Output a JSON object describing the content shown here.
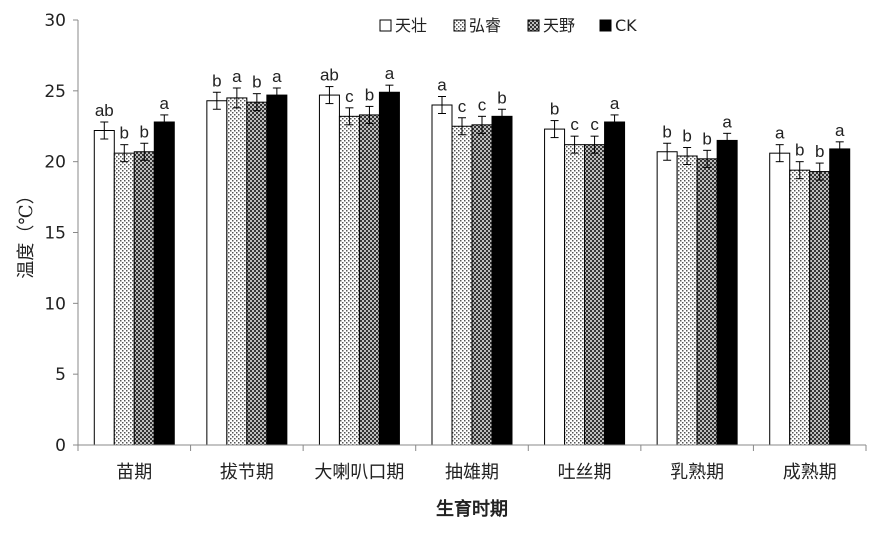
{
  "chart_data": {
    "type": "bar",
    "xlabel": "生育时期",
    "ylabel": "温度（℃）",
    "ylim": [
      0,
      30
    ],
    "yticks": [
      0,
      5,
      10,
      15,
      20,
      25,
      30
    ],
    "categories": [
      "苗期",
      "拔节期",
      "大喇叭口期",
      "抽雄期",
      "吐丝期",
      "乳熟期",
      "成熟期"
    ],
    "legend_position": "top",
    "series": [
      {
        "name": "天壮",
        "pattern": "white",
        "values": [
          22.2,
          24.3,
          24.7,
          24.0,
          22.3,
          20.7,
          20.6
        ],
        "errors": [
          0.6,
          0.6,
          0.6,
          0.6,
          0.6,
          0.6,
          0.6
        ],
        "labels": [
          "ab",
          "b",
          "ab",
          "a",
          "b",
          "b",
          "a"
        ]
      },
      {
        "name": "弘睿",
        "pattern": "dots",
        "values": [
          20.6,
          24.5,
          23.2,
          22.5,
          21.2,
          20.4,
          19.4
        ],
        "errors": [
          0.6,
          0.7,
          0.6,
          0.6,
          0.6,
          0.6,
          0.6
        ],
        "labels": [
          "b",
          "a",
          "c",
          "c",
          "c",
          "b",
          "b"
        ]
      },
      {
        "name": "天野",
        "pattern": "crosshatch",
        "values": [
          20.7,
          24.2,
          23.3,
          22.6,
          21.2,
          20.2,
          19.3
        ],
        "errors": [
          0.6,
          0.6,
          0.6,
          0.6,
          0.6,
          0.6,
          0.6
        ],
        "labels": [
          "b",
          "b",
          "b",
          "c",
          "c",
          "b",
          "b"
        ]
      },
      {
        "name": "CK",
        "pattern": "black",
        "values": [
          22.8,
          24.7,
          24.9,
          23.2,
          22.8,
          21.5,
          20.9
        ],
        "errors": [
          0.5,
          0.5,
          0.5,
          0.5,
          0.5,
          0.5,
          0.5
        ],
        "labels": [
          "a",
          "a",
          "a",
          "b",
          "a",
          "a",
          "a"
        ]
      }
    ]
  }
}
